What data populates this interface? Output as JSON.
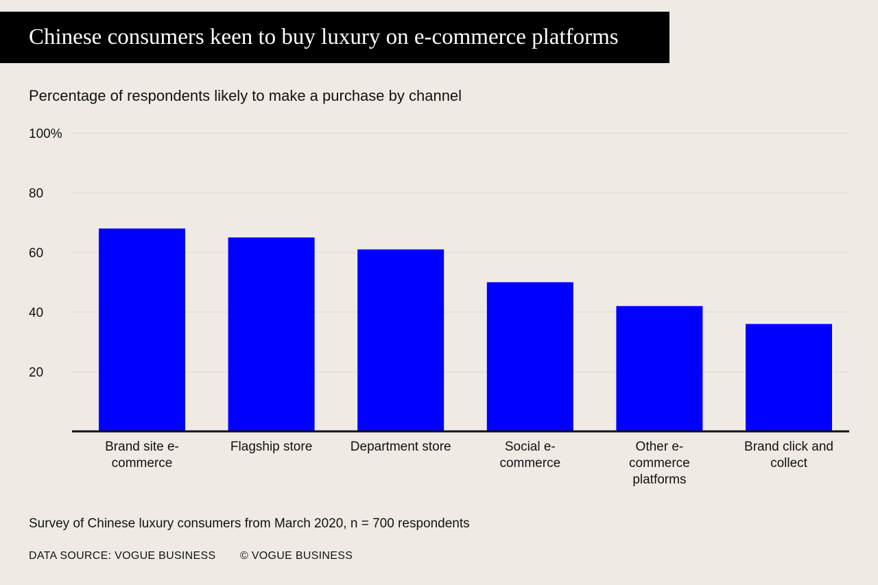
{
  "header": {
    "title": "Chinese consumers keen to buy luxury on e-commerce platforms"
  },
  "colors": {
    "bar": "#0000ff",
    "background": "#efebe4",
    "title_background": "#000000"
  },
  "chart_data": {
    "type": "bar",
    "title": "Chinese consumers keen to buy luxury on e-commerce platforms",
    "subtitle": "Percentage of respondents likely to make a purchase by channel",
    "categories": [
      [
        "Brand site e-",
        "commerce"
      ],
      [
        "Flagship store"
      ],
      [
        "Department store"
      ],
      [
        "Social e-",
        "commerce"
      ],
      [
        "Other e-",
        "commerce",
        "platforms"
      ],
      [
        "Brand click and",
        "collect"
      ]
    ],
    "values": [
      68,
      65,
      61,
      50,
      42,
      36
    ],
    "ylim": [
      0,
      100
    ],
    "yticks": [
      20,
      40,
      60,
      80,
      100
    ],
    "ytick_labels": [
      "20",
      "40",
      "60",
      "80",
      "100%"
    ],
    "xlabel": "",
    "ylabel": "",
    "grid": true
  },
  "footer": {
    "note": "Survey of Chinese luxury consumers from March 2020, n = 700 respondents",
    "source": "DATA SOURCE: VOGUE BUSINESS",
    "copyright": "© VOGUE BUSINESS"
  }
}
